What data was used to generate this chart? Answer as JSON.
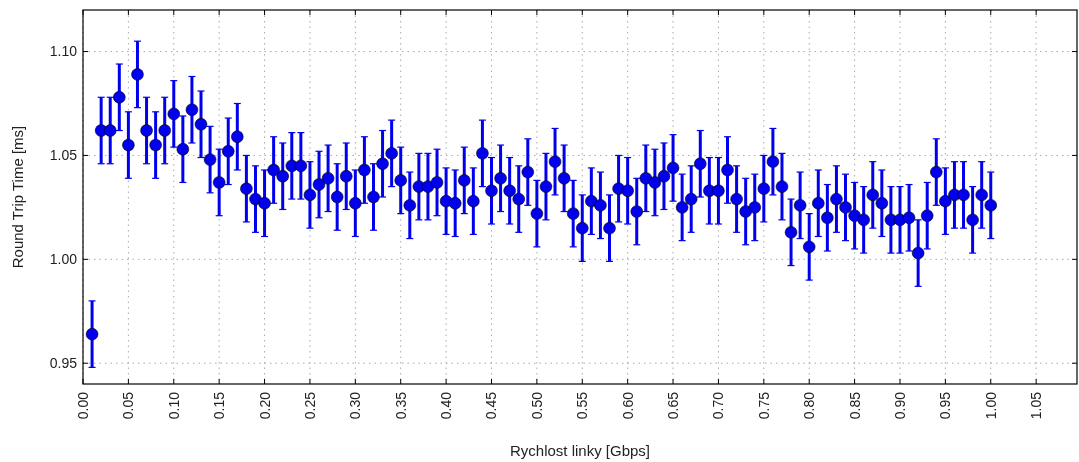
{
  "chart_data": {
    "type": "scatter",
    "xlabel": "Rychlost linky [Gbps]",
    "ylabel": "Round Trip Time [ms]",
    "xlim": [
      0,
      1.095
    ],
    "xticks": [
      {
        "value": 0,
        "label": "0.00"
      },
      {
        "value": 0.05,
        "label": "0.05"
      },
      {
        "value": 0.1,
        "label": "0.10"
      },
      {
        "value": 0.15,
        "label": "0.15"
      },
      {
        "value": 0.2,
        "label": "0.20"
      },
      {
        "value": 0.25,
        "label": "0.25"
      },
      {
        "value": 0.3,
        "label": "0.30"
      },
      {
        "value": 0.35,
        "label": "0.35"
      },
      {
        "value": 0.4,
        "label": "0.40"
      },
      {
        "value": 0.45,
        "label": "0.45"
      },
      {
        "value": 0.5,
        "label": "0.50"
      },
      {
        "value": 0.55,
        "label": "0.55"
      },
      {
        "value": 0.6,
        "label": "0.60"
      },
      {
        "value": 0.65,
        "label": "0.65"
      },
      {
        "value": 0.7,
        "label": "0.70"
      },
      {
        "value": 0.75,
        "label": "0.75"
      },
      {
        "value": 0.8,
        "label": "0.80"
      },
      {
        "value": 0.85,
        "label": "0.85"
      },
      {
        "value": 0.9,
        "label": "0.90"
      },
      {
        "value": 0.95,
        "label": "0.95"
      },
      {
        "value": 1,
        "label": "1.00"
      },
      {
        "value": 1.05,
        "label": "1.05"
      }
    ],
    "ylim": [
      0.94,
      1.12
    ],
    "yticks": [
      0.95,
      {
        "value": 1,
        "label": "1.00"
      },
      1.05,
      {
        "value": 1.1,
        "label": "1.10"
      }
    ],
    "grid": true,
    "marker": "circle",
    "x": [
      0.01,
      0.02,
      0.03,
      0.04,
      0.05,
      0.06,
      0.07,
      0.08,
      0.09,
      0.1,
      0.11,
      0.12,
      0.13,
      0.14,
      0.15,
      0.16,
      0.17,
      0.18,
      0.19,
      0.2,
      0.21,
      0.22,
      0.23,
      0.24,
      0.25,
      0.26,
      0.27,
      0.28,
      0.29,
      0.3,
      0.31,
      0.32,
      0.33,
      0.34,
      0.35,
      0.36,
      0.37,
      0.38,
      0.39,
      0.4,
      0.41,
      0.42,
      0.43,
      0.44,
      0.45,
      0.46,
      0.47,
      0.48,
      0.49,
      0.5,
      0.51,
      0.52,
      0.53,
      0.54,
      0.55,
      0.56,
      0.57,
      0.58,
      0.59,
      0.6,
      0.61,
      0.62,
      0.63,
      0.64,
      0.65,
      0.66,
      0.67,
      0.68,
      0.69,
      0.7,
      0.71,
      0.72,
      0.73,
      0.74,
      0.75,
      0.76,
      0.77,
      0.78,
      0.79,
      0.8,
      0.81,
      0.82,
      0.83,
      0.84,
      0.85,
      0.86,
      0.87,
      0.88,
      0.89,
      0.9,
      0.91,
      0.92,
      0.93,
      0.94,
      0.95,
      0.96,
      0.97,
      0.98,
      0.99,
      1.0
    ],
    "series": [
      {
        "color": "#0000ee",
        "values": [
          0.964,
          1.062,
          1.062,
          1.078,
          1.055,
          1.089,
          1.062,
          1.055,
          1.062,
          1.07,
          1.053,
          1.072,
          1.065,
          1.048,
          1.037,
          1.052,
          1.059,
          1.034,
          1.029,
          1.027,
          1.043,
          1.04,
          1.045,
          1.045,
          1.031,
          1.036,
          1.039,
          1.03,
          1.04,
          1.027,
          1.043,
          1.03,
          1.046,
          1.051,
          1.038,
          1.026,
          1.035,
          1.035,
          1.037,
          1.028,
          1.027,
          1.038,
          1.028,
          1.051,
          1.033,
          1.039,
          1.033,
          1.029,
          1.042,
          1.022,
          1.035,
          1.047,
          1.039,
          1.022,
          1.015,
          1.028,
          1.026,
          1.015,
          1.034,
          1.033,
          1.023,
          1.039,
          1.037,
          1.04,
          1.044,
          1.025,
          1.029,
          1.046,
          1.033,
          1.033,
          1.043,
          1.029,
          1.023,
          1.025,
          1.034,
          1.047,
          1.035,
          1.013,
          1.026,
          1.006,
          1.027,
          1.02,
          1.029,
          1.025,
          1.021,
          1.019,
          1.031,
          1.027,
          1.019,
          1.019,
          1.02,
          1.003,
          1.021,
          1.042,
          1.028,
          1.031,
          1.031,
          1.019,
          1.031,
          1.026
        ],
        "errors": [
          0.016,
          0.016,
          0.016,
          0.016,
          0.016,
          0.016,
          0.016,
          0.016,
          0.016,
          0.016,
          0.016,
          0.016,
          0.016,
          0.016,
          0.016,
          0.016,
          0.016,
          0.016,
          0.016,
          0.016,
          0.016,
          0.016,
          0.016,
          0.016,
          0.016,
          0.016,
          0.016,
          0.016,
          0.016,
          0.016,
          0.016,
          0.016,
          0.016,
          0.016,
          0.016,
          0.016,
          0.016,
          0.016,
          0.016,
          0.016,
          0.016,
          0.016,
          0.016,
          0.016,
          0.016,
          0.016,
          0.016,
          0.016,
          0.016,
          0.016,
          0.016,
          0.016,
          0.016,
          0.016,
          0.016,
          0.016,
          0.016,
          0.016,
          0.016,
          0.016,
          0.016,
          0.016,
          0.016,
          0.016,
          0.016,
          0.016,
          0.016,
          0.016,
          0.016,
          0.016,
          0.016,
          0.016,
          0.016,
          0.016,
          0.016,
          0.016,
          0.016,
          0.016,
          0.016,
          0.016,
          0.016,
          0.016,
          0.016,
          0.016,
          0.016,
          0.016,
          0.016,
          0.016,
          0.016,
          0.016,
          0.016,
          0.016,
          0.016,
          0.016,
          0.016,
          0.016,
          0.016,
          0.016,
          0.016,
          0.016
        ]
      }
    ]
  }
}
